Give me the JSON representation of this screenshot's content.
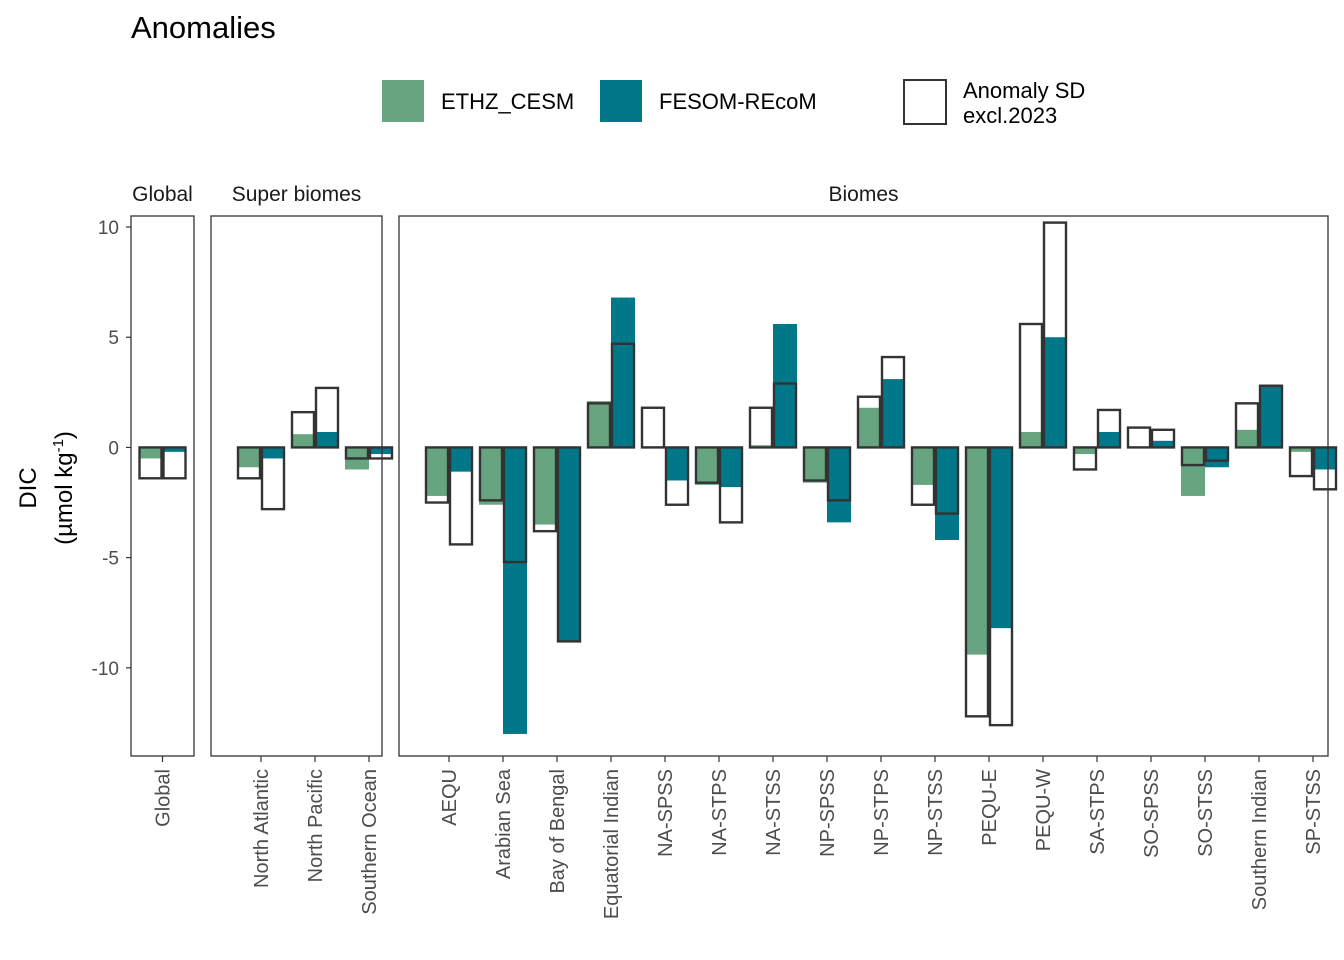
{
  "title": "Anomalies",
  "legend": {
    "items": [
      {
        "label": "ETHZ_CESM",
        "color": "#67a480"
      },
      {
        "label": "FESOM-REcoM",
        "color": "#00788a"
      }
    ],
    "sd_label_line1": "Anomaly SD",
    "sd_label_line2": "excl.2023"
  },
  "y_axis": {
    "label_line1": "DIC",
    "label_line2_prefix": "(µmol kg",
    "label_line2_sup": "-1",
    "label_line2_suffix": ")"
  },
  "chart_data": {
    "type": "bar",
    "ylim": [
      -14,
      10.5
    ],
    "yticks": [
      10,
      5,
      0,
      -5,
      -10
    ],
    "ytick_labels": [
      "10",
      "5",
      "0",
      "-5",
      "-10"
    ],
    "grid": false,
    "legend_position": "top",
    "series": [
      {
        "name": "ETHZ_CESM",
        "color": "#67a480"
      },
      {
        "name": "FESOM-REcoM",
        "color": "#00788a"
      }
    ],
    "panels": [
      {
        "title": "Global",
        "categories": [
          "Global"
        ],
        "values": [
          [
            -0.5,
            -0.2
          ]
        ],
        "sd": [
          [
            -1.4,
            -1.4
          ]
        ]
      },
      {
        "title": "Super biomes",
        "categories": [
          "North Atlantic",
          "North Pacific",
          "Southern Ocean"
        ],
        "values": [
          [
            -0.9,
            -0.5
          ],
          [
            0.6,
            0.7
          ],
          [
            -1.0,
            -0.3
          ]
        ],
        "sd": [
          [
            -1.4,
            -2.8
          ],
          [
            1.6,
            2.7
          ],
          [
            -0.5,
            -0.5
          ]
        ]
      },
      {
        "title": "Biomes",
        "categories": [
          "AEQU",
          "Arabian Sea",
          "Bay of Bengal",
          "Equatorial Indian",
          "NA-SPSS",
          "NA-STPS",
          "NA-STSS",
          "NP-SPSS",
          "NP-STPS",
          "NP-STSS",
          "PEQU-E",
          "PEQU-W",
          "SA-STPS",
          "SO-SPSS",
          "SO-STSS",
          "Southern Indian",
          "SP-STSS"
        ],
        "values": [
          [
            -2.2,
            -1.1
          ],
          [
            -2.6,
            -13.0
          ],
          [
            -3.5,
            -8.8
          ],
          [
            2.1,
            6.8
          ],
          [
            0.05,
            -1.5
          ],
          [
            -1.7,
            -1.8
          ],
          [
            0.1,
            5.6
          ],
          [
            -1.6,
            -3.4
          ],
          [
            1.8,
            3.1
          ],
          [
            -1.7,
            -4.2
          ],
          [
            -9.4,
            -8.2
          ],
          [
            0.7,
            5.0
          ],
          [
            -0.3,
            0.7
          ],
          [
            0.05,
            0.3
          ],
          [
            -2.2,
            -0.9
          ],
          [
            0.8,
            2.8
          ],
          [
            -0.2,
            -1.0
          ]
        ],
        "sd": [
          [
            -2.5,
            -4.4
          ],
          [
            -2.4,
            -5.2
          ],
          [
            -3.8,
            -8.8
          ],
          [
            2.0,
            4.7
          ],
          [
            1.8,
            -2.6
          ],
          [
            -1.6,
            -3.4
          ],
          [
            1.8,
            2.9
          ],
          [
            -1.5,
            -2.4
          ],
          [
            2.3,
            4.1
          ],
          [
            -2.6,
            -3.0
          ],
          [
            -12.2,
            -12.6
          ],
          [
            5.6,
            10.2
          ],
          [
            -1.0,
            1.7
          ],
          [
            0.9,
            0.8
          ],
          [
            -0.8,
            -0.6
          ],
          [
            2.0,
            2.8
          ],
          [
            -1.3,
            -1.9
          ]
        ]
      }
    ]
  }
}
